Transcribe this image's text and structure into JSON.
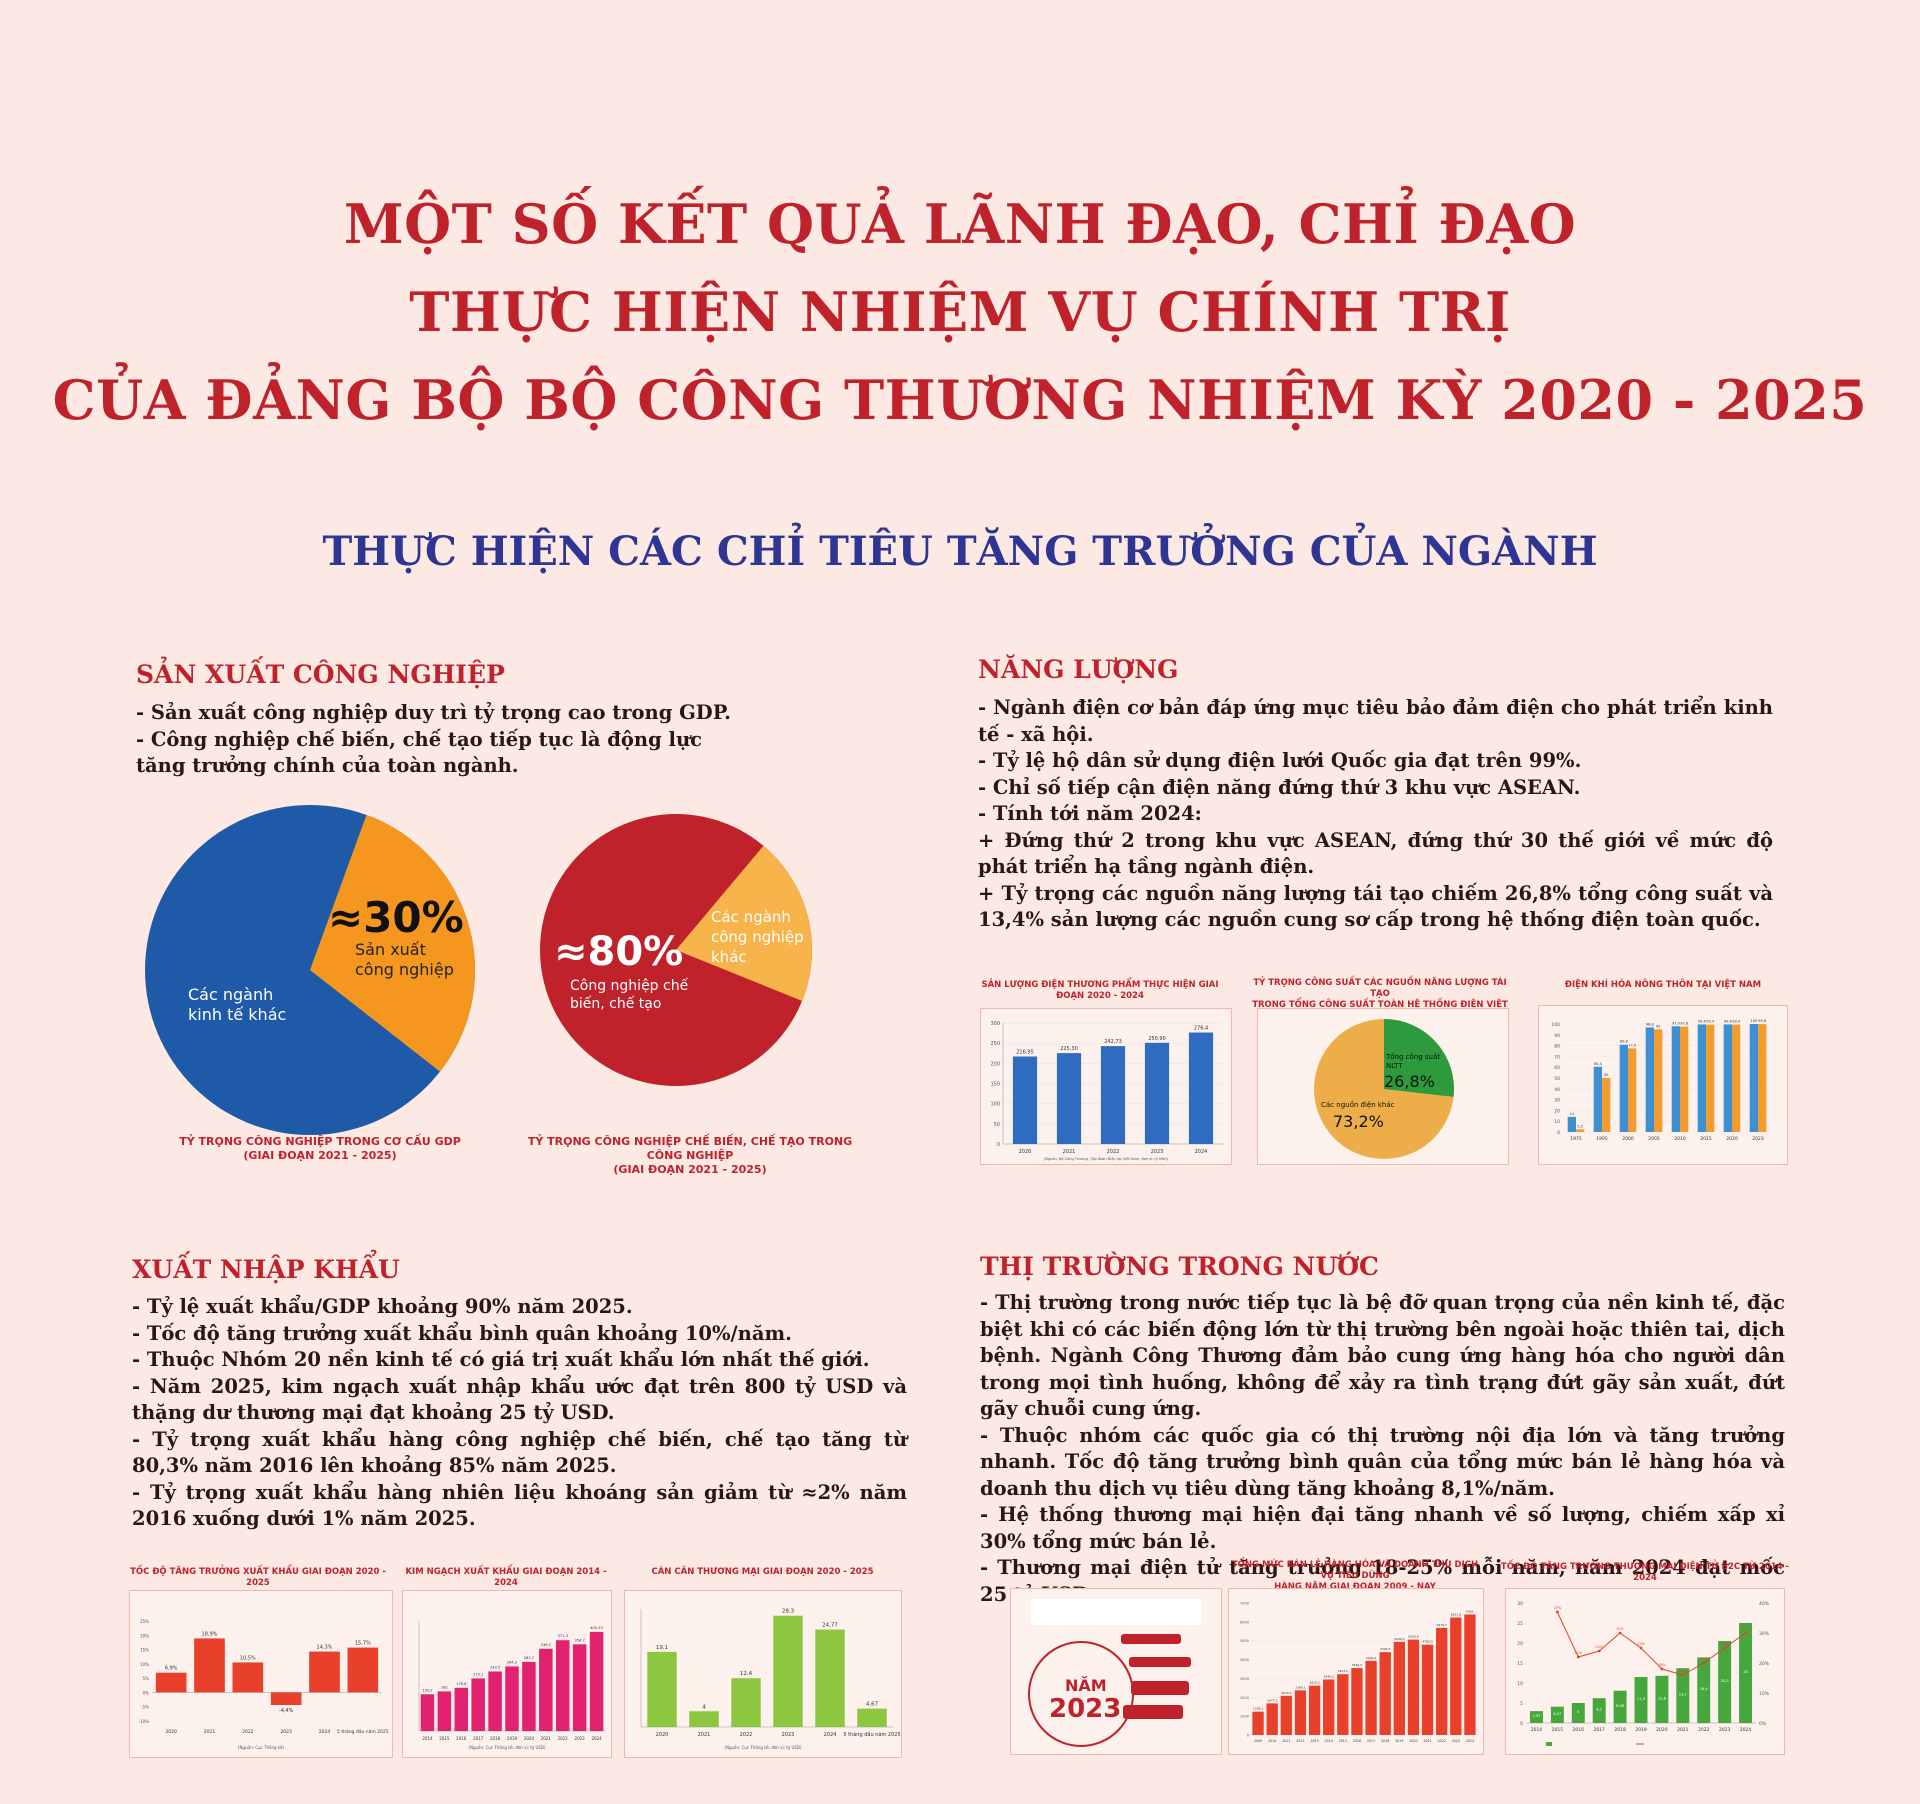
{
  "header": {
    "title_line1": "MỘT SỐ KẾT QUẢ LÃNH ĐẠO, CHỈ ĐẠO",
    "title_line2": "THỰC HIỆN NHIỆM VỤ CHÍNH TRỊ",
    "title_line3": "CỦA ĐẢNG BỘ BỘ CÔNG THƯƠNG NHIỆM KỲ 2020 - 2025",
    "subtitle": "THỰC HIỆN CÁC CHỈ TIÊU TĂNG TRƯỞNG CỦA NGÀNH"
  },
  "sx": {
    "heading": "SẢN XUẤT CÔNG NGHIỆP",
    "lines": [
      "- Sản xuất công nghiệp duy trì tỷ trọng cao trong GDP.",
      "- Công nghiệp chế biến, chế tạo tiếp tục là động lực tăng trưởng chính của toàn ngành."
    ],
    "pie1": {
      "big": "≈30%",
      "slice_label1": "Sản xuất",
      "slice_label2": "công nghiệp",
      "other1": "Các ngành",
      "other2": "kinh tế khác",
      "cap1": "TỶ TRỌNG CÔNG NGHIỆP TRONG CƠ CẤU GDP",
      "cap2": "(GIAI ĐOẠN 2021 - 2025)",
      "share": 0.3,
      "color_main": "#1f5aa8",
      "color_slice": "#f5961e"
    },
    "pie2": {
      "big": "≈80%",
      "slice_label1": "Công nghiệp chế",
      "slice_label2": "biến, chế tạo",
      "other1": "Các ngành",
      "other2": "công nghiệp",
      "other3": "khác",
      "cap1": "TỶ TRỌNG CÔNG NGHIỆP CHẾ BIẾN, CHẾ TẠO TRONG CÔNG NGHIỆP",
      "cap2": "(GIAI ĐOẠN 2021 - 2025)",
      "share": 0.8,
      "color_main": "#c0222c",
      "color_slice": "#f7b44a"
    }
  },
  "nl": {
    "heading": "NĂNG LƯỢNG",
    "lines": [
      "- Ngành điện cơ bản đáp ứng mục tiêu bảo đảm điện cho phát triển kinh tế - xã hội.",
      "- Tỷ lệ hộ dân sử dụng điện lưới Quốc gia đạt trên 99%.",
      "- Chỉ số tiếp cận điện năng đứng thứ 3 khu vực ASEAN.",
      "- Tính tới năm 2024:",
      "+ Đứng thứ 2 trong khu vực ASEAN, đứng thứ 30 thế giới về mức độ phát triển hạ tầng ngành điện.",
      "+ Tỷ trọng các nguồn năng lượng tái tạo chiếm 26,8% tổng công suất và 13,4% sản lượng các nguồn cung sơ cấp trong hệ thống điện toàn quốc."
    ],
    "c1_title": "SẢN LƯỢNG ĐIỆN THƯƠNG PHẨM THỰC HIỆN GIAI ĐOẠN 2020 - 2024",
    "c2_title1": "TỶ TRỌNG CÔNG SUẤT CÁC NGUỒN NĂNG LƯỢNG TÁI TẠO",
    "c2_title2": "TRONG TỔNG CÔNG SUẤT TOÀN HỆ THỐNG ĐIỆN VIỆT NAM NĂM 2024",
    "c2_green_label1": "Tổng công suất",
    "c2_green_label2": "NLTT",
    "c2_green_value": "26,8%",
    "c2_other_label": "Các nguồn điện khác",
    "c2_other_value": "73,2%",
    "c3_title": "ĐIỆN KHÍ HÓA NÔNG THÔN TẠI VIỆT NAM"
  },
  "xnk": {
    "heading": "XUẤT NHẬP KHẨU",
    "lines": [
      "- Tỷ lệ xuất khẩu/GDP khoảng 90% năm 2025.",
      "- Tốc độ tăng trưởng xuất khẩu bình quân khoảng 10%/năm.",
      "- Thuộc Nhóm 20 nền kinh tế có giá trị xuất khẩu lớn nhất thế giới.",
      "- Năm 2025, kim ngạch xuất nhập khẩu ước đạt trên 800 tỷ USD và thặng dư thương mại đạt khoảng 25 tỷ USD.",
      "- Tỷ trọng xuất khẩu hàng công nghiệp chế biến, chế tạo tăng từ 80,3% năm 2016 lên khoảng 85% năm 2025.",
      "- Tỷ trọng xuất khẩu hàng nhiên liệu khoáng sản giảm từ ≈2% năm 2016 xuống dưới 1% năm 2025."
    ],
    "c1_title": "TỐC ĐỘ TĂNG TRƯỞNG XUẤT KHẨU GIAI ĐOẠN 2020 - 2025",
    "c1_source": "(Nguồn: Cục Thống kê)",
    "c2_title": "KIM NGẠCH XUẤT KHẨU GIAI ĐOẠN 2014 - 2024",
    "c2_source": "(Nguồn: Cục Thống kê, đơn vị: tỷ USD)",
    "c3_title": "CÁN CÂN THƯƠNG MẠI GIAI ĐOẠN 2020 - 2025",
    "c3_source": "(Nguồn: Cục Thống kê, đơn vị: tỷ USD)"
  },
  "ttn": {
    "heading": "THỊ TRƯỜNG TRONG NƯỚC",
    "lines": [
      "- Thị trường trong nước tiếp tục là bệ đỡ quan trọng của nền kinh tế, đặc biệt khi có các biến động lớn từ thị trường bên ngoài hoặc thiên tai, dịch bệnh. Ngành Công Thương đảm bảo cung ứng hàng hóa cho người dân trong mọi tình huống, không để xảy ra tình trạng đứt gãy sản xuất, đứt gãy chuỗi cung ứng.",
      "- Thuộc nhóm các quốc gia có thị trường nội địa lớn và tăng trưởng nhanh. Tốc độ tăng trưởng bình quân của tổng mức bán lẻ hàng hóa và doanh thu dịch vụ tiêu dùng tăng khoảng 8,1%/năm.",
      "- Hệ thống thương mại hiện đại tăng nhanh về số lượng, chiếm xấp xỉ 30% tổng mức bán lẻ.",
      "- Thương mại điện tử tăng trưởng 18-25% mỗi năm, năm 2024 đạt mốc 25 tỷ USD."
    ],
    "c1_year_label": "NĂM",
    "c1_year": "2023",
    "c2_title1": "TỔNG MỨC BÁN LẺ HÀNG HÓA VÀ DOANH THU DỊCH VỤ TIÊU DÙNG",
    "c2_title2": "HÀNG NĂM GIAI ĐOẠN 2009 - NAY",
    "c3_title": "TỐC ĐỘ TĂNG TRƯỞNG THƯƠNG MẠI ĐIỆN TỬ B2C TỪ 2014 - 2024"
  },
  "chart_data": [
    {
      "type": "pie",
      "title": "TỶ TRỌNG CÔNG NGHIỆP TRONG CƠ CẤU GDP (GIAI ĐOẠN 2021 - 2025)",
      "labels": [
        "Sản xuất công nghiệp",
        "Các ngành kinh tế khác"
      ],
      "values": [
        30,
        70
      ]
    },
    {
      "type": "pie",
      "title": "TỶ TRỌNG CÔNG NGHIỆP CHẾ BIẾN, CHẾ TẠO TRONG CÔNG NGHIỆP (GIAI ĐOẠN 2021 - 2025)",
      "labels": [
        "Công nghiệp chế biến, chế tạo",
        "Các ngành công nghiệp khác"
      ],
      "values": [
        80,
        20
      ]
    },
    {
      "type": "bar",
      "title": "SẢN LƯỢNG ĐIỆN THƯƠNG PHẨM THỰC HIỆN GIAI ĐOẠN 2020 - 2024",
      "categories": [
        "2020",
        "2021",
        "2022",
        "2023",
        "2024"
      ],
      "values": [
        216.95,
        225.3,
        242.73,
        250.9,
        276.4
      ],
      "value_labels": [
        "216,95",
        "225,30",
        "242,73",
        "250,90",
        "276,4"
      ],
      "ylim": [
        0,
        300
      ],
      "yticks": [
        0,
        50,
        100,
        150,
        200,
        250,
        300
      ],
      "color": "#2f6bbf"
    },
    {
      "type": "pie",
      "title": "TỶ TRỌNG CÔNG SUẤT CÁC NGUỒN NĂNG LƯỢNG TÁI TẠO TRONG TỔNG CÔNG SUẤT TOÀN HỆ THỐNG ĐIỆN VIỆT NAM NĂM 2024",
      "labels": [
        "Tổng công suất NLTT",
        "Các nguồn điện khác"
      ],
      "values": [
        26.8,
        73.2
      ],
      "colors": [
        "#2e9a3e",
        "#edae4a"
      ]
    },
    {
      "type": "bar",
      "title": "ĐIỆN KHÍ HÓA NÔNG THÔN TẠI VIỆT NAM",
      "categories": [
        "1975",
        "1995",
        "2000",
        "2005",
        "2010",
        "2015",
        "2020",
        "2023"
      ],
      "series": [
        {
          "values": [
            14,
            60.4,
            80.8,
            96.8,
            97.9,
            99.6,
            99.6,
            100
          ]
        },
        {
          "values": [
            2.5,
            50,
            77.4,
            95,
            97.6,
            99.4,
            99.4,
            99.8
          ]
        }
      ],
      "ylim": [
        0,
        100
      ],
      "yticks": [
        0,
        10,
        20,
        30,
        40,
        50,
        60,
        70,
        80,
        90,
        100
      ],
      "colors": [
        "#3d8fd1",
        "#f29b2f"
      ]
    },
    {
      "type": "bar",
      "title": "TỐC ĐỘ TĂNG TRƯỞNG XUẤT KHẨU GIAI ĐOẠN 2020 - 2025",
      "categories": [
        "2020",
        "2021",
        "2022",
        "2023",
        "2024",
        "5 tháng đầu năm 2025"
      ],
      "values": [
        6.9,
        18.9,
        10.5,
        -4.4,
        14.3,
        15.7
      ],
      "value_labels": [
        "6,9%",
        "18,9%",
        "10,5%",
        "-4,4%",
        "14,3%",
        "15,7%"
      ],
      "ylim": [
        -10,
        25
      ],
      "color": "#e8402a"
    },
    {
      "type": "bar",
      "title": "KIM NGẠCH XUẤT KHẨU GIAI ĐOẠN 2014 - 2024",
      "categories": [
        "2014",
        "2015",
        "2016",
        "2017",
        "2018",
        "2019",
        "2020",
        "2021",
        "2022",
        "2023",
        "2024"
      ],
      "values": [
        150.2,
        162,
        176.6,
        215.1,
        243.5,
        264.2,
        282.7,
        336.2,
        371.3,
        354.7,
        405.53
      ],
      "value_labels": [
        "150,2",
        "162",
        "176,6",
        "215,1",
        "243,5",
        "264,2",
        "282,7",
        "336,2",
        "371,3",
        "354,7",
        "405,53"
      ],
      "ylim": [
        0,
        450
      ],
      "color": "#e2226e"
    },
    {
      "type": "bar",
      "title": "CÁN CÂN THƯƠNG MẠI GIAI ĐOẠN 2020 - 2025",
      "categories": [
        "2020",
        "2021",
        "2022",
        "2023",
        "2024",
        "5 tháng đầu năm 2025"
      ],
      "values": [
        19.1,
        4,
        12.4,
        28.3,
        24.77,
        4.67
      ],
      "value_labels": [
        "19,1",
        "4",
        "12,4",
        "28,3",
        "24,77",
        "4,67"
      ],
      "ylim": [
        0,
        30
      ],
      "color": "#8dc63f"
    },
    {
      "type": "bar",
      "title": "TỔNG MỨC BÁN LẺ HÀNG HÓA VÀ DOANH THU DỊCH VỤ TIÊU DÙNG HÀNG NĂM GIAI ĐOẠN 2009 - NAY",
      "categories": [
        "2009",
        "2010",
        "2011",
        "2012",
        "2013",
        "2014",
        "2015",
        "2016",
        "2017",
        "2018",
        "2019",
        "2020",
        "2021",
        "2022",
        "2023",
        "2024"
      ],
      "values": [
        1238.1,
        1677.3,
        2079.5,
        2369.1,
        2615.2,
        2945.2,
        3223.2,
        3546.3,
        3934.2,
        4393.5,
        4940.4,
        5059.8,
        4789.5,
        5679.7,
        6231.8,
        6391
      ],
      "ylim": [
        0,
        7000
      ],
      "color": "#e8402a"
    },
    {
      "type": "bar",
      "title": "TỐC ĐỘ TĂNG TRƯỞNG THƯƠNG MẠI ĐIỆN TỬ B2C TỪ 2014 - 2024",
      "categories": [
        "2014",
        "2015",
        "2016",
        "2017",
        "2018",
        "2019",
        "2020",
        "2021",
        "2022",
        "2023",
        "2024"
      ],
      "series": [
        {
          "type": "bar",
          "values": [
            2.97,
            4.07,
            5,
            6.2,
            8.06,
            11.5,
            11.8,
            13.7,
            16.4,
            20.5,
            25
          ]
        },
        {
          "type": "line",
          "values": [
            null,
            37,
            22,
            24,
            30,
            25,
            18,
            16,
            20,
            25,
            30
          ]
        }
      ],
      "ylim": [
        0,
        30
      ],
      "y2lim": [
        0,
        40
      ],
      "colors": [
        "#46a83c",
        "#e8402a"
      ]
    }
  ]
}
